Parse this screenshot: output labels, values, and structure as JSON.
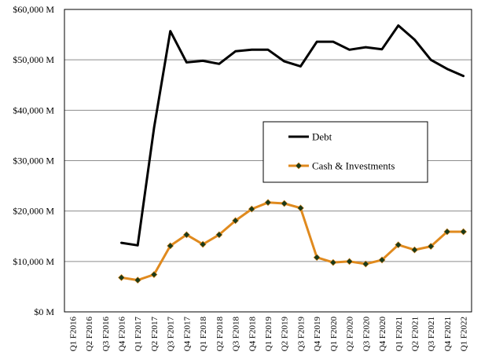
{
  "chart_data": {
    "type": "line",
    "title": "",
    "xlabel": "",
    "ylabel": "",
    "ylim": [
      0,
      60000
    ],
    "y_ticks": [
      0,
      10000,
      20000,
      30000,
      40000,
      50000,
      60000
    ],
    "y_tick_labels": [
      "$0 M",
      "$10,000 M",
      "$20,000 M",
      "$30,000 M",
      "$40,000 M",
      "$50,000 M",
      "$60,000 M"
    ],
    "grid": "horizontal",
    "legend_position": "center-right",
    "categories": [
      "Q1 F2016",
      "Q2 F2016",
      "Q3 F2016",
      "Q4 F2016",
      "Q1 F2017",
      "Q2 F2017",
      "Q3 F2017",
      "Q4 F2017",
      "Q1 F2018",
      "Q2 F2018",
      "Q3 F2018",
      "Q4 F2018",
      "Q1 F2019",
      "Q2 F2019",
      "Q3 F2019",
      "Q4 F2019",
      "Q1 F2020",
      "Q2 F2020",
      "Q3 F2020",
      "Q4 F2020",
      "Q1 F2021",
      "Q2 F2021",
      "Q3 F2021",
      "Q4 F2021",
      "Q1 F2022"
    ],
    "series": [
      {
        "name": "Debt",
        "color": "#000000",
        "marker": "none",
        "values": [
          null,
          null,
          null,
          13700,
          13200,
          36500,
          55700,
          49500,
          49800,
          49200,
          51700,
          52000,
          52000,
          49700,
          48700,
          53600,
          53600,
          52000,
          52500,
          52100,
          56800,
          54000,
          50000,
          48200,
          46800
        ]
      },
      {
        "name": "Cash & Investments",
        "color": "#E08A1E",
        "marker": "diamond",
        "marker_color": "#1a3a1a",
        "values": [
          null,
          null,
          null,
          6800,
          6300,
          7400,
          13100,
          15300,
          13400,
          15300,
          18100,
          20400,
          21700,
          21500,
          20600,
          10800,
          9800,
          10000,
          9500,
          10300,
          13300,
          12300,
          13000,
          15900,
          15900
        ]
      }
    ]
  }
}
